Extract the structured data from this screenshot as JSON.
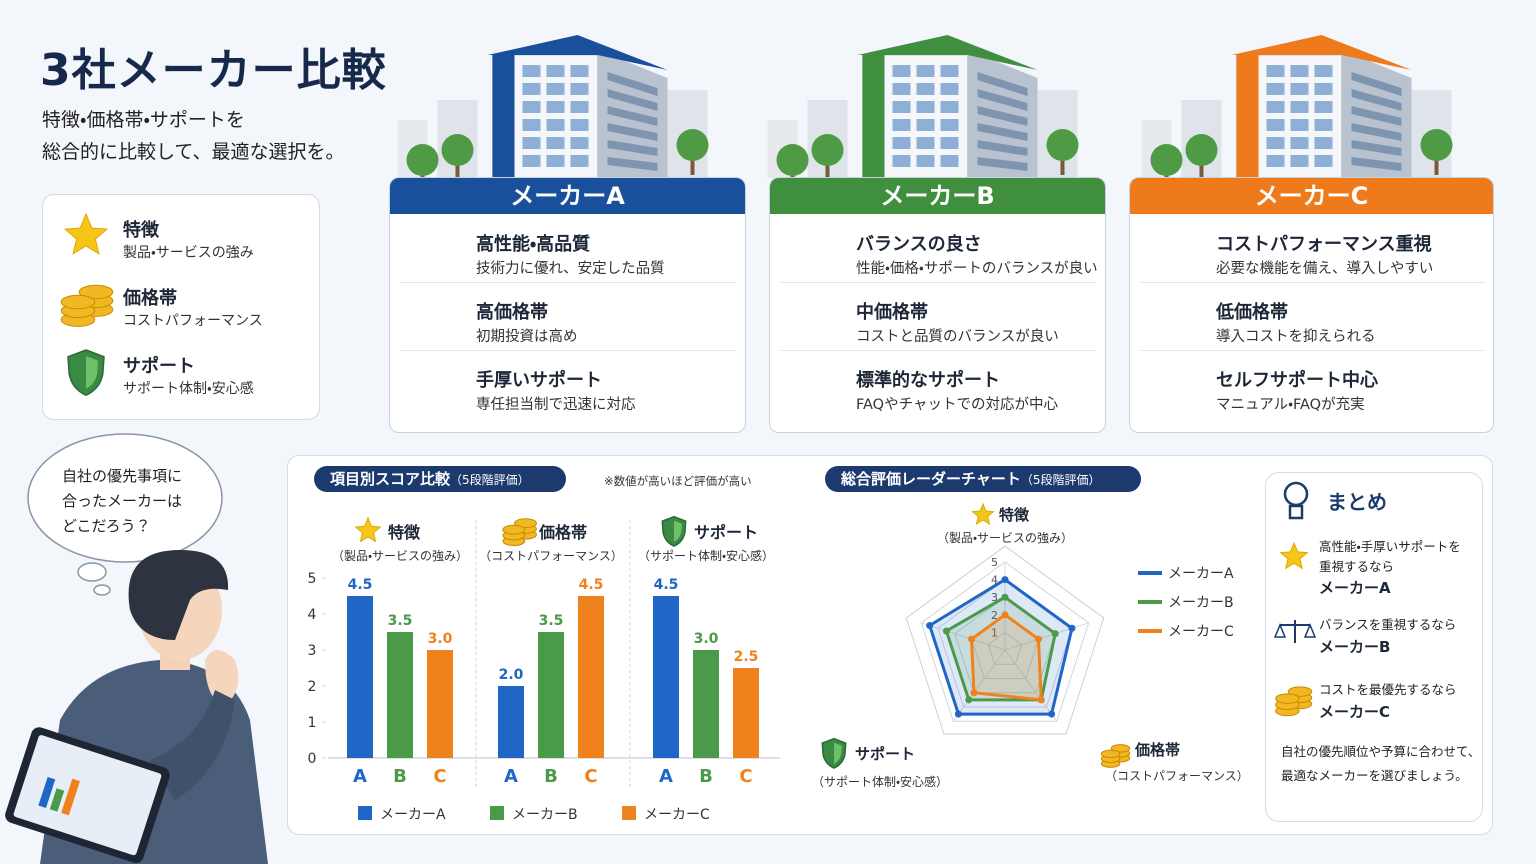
{
  "header": {
    "title": "3社メーカー比較",
    "subtitle": [
      "特徴・価格帯・サポートを",
      "総合的に比較して、最適な選択を。"
    ]
  },
  "legend": [
    {
      "title": "特徴",
      "desc": "製品・サービスの強み"
    },
    {
      "title": "価格帯",
      "desc": "コストパフォーマンス"
    },
    {
      "title": "サポート",
      "desc": "サポート体制・安心感"
    }
  ],
  "makers": [
    {
      "name": "メーカーA",
      "color": "#1a4f9c",
      "rows": [
        {
          "title": "高性能・高品質",
          "desc": "技術力に優れ、安定した品質"
        },
        {
          "title": "高価格帯",
          "desc": "初期投資は高め"
        },
        {
          "title": "手厚いサポート",
          "desc": "専任担当制で迅速に対応"
        }
      ]
    },
    {
      "name": "メーカーB",
      "color": "#3f8f3f",
      "rows": [
        {
          "title": "バランスの良さ",
          "desc": "性能・価格・サポートのバランスが良い"
        },
        {
          "title": "中価格帯",
          "desc": "コストと品質のバランスが良い"
        },
        {
          "title": "標準的なサポート",
          "desc": "FAQやチャットでの対応が中心"
        }
      ]
    },
    {
      "name": "メーカーC",
      "color": "#ee7a1c",
      "rows": [
        {
          "title": "コストパフォーマンス重視",
          "desc": "必要な機能を備え、導入しやすい"
        },
        {
          "title": "低価格帯",
          "desc": "導入コストを抑えられる"
        },
        {
          "title": "セルフサポート中心",
          "desc": "マニュアル・FAQが充実"
        }
      ]
    }
  ],
  "thought": [
    "自社の優先事項に",
    "合ったメーカーは",
    "どこだろう？"
  ],
  "chart_data": [
    {
      "type": "bar",
      "title": "項目別スコア比較",
      "title_note": "（5段階評価）",
      "note": "※数値が高いほど評価が高い",
      "ylim": [
        0,
        5
      ],
      "yticks": [
        0,
        1,
        2,
        3,
        4,
        5
      ],
      "categories": [
        "A",
        "B",
        "C"
      ],
      "colors": [
        "#1f66c6",
        "#4a9a4a",
        "#f0821e"
      ],
      "legend": [
        "メーカーA",
        "メーカーB",
        "メーカーC"
      ],
      "groups": [
        {
          "name": "特徴",
          "sub": "（製品・サービスの強み）",
          "values": [
            4.5,
            3.5,
            3.0
          ],
          "value_labels": [
            "4.5",
            "3.5",
            "3.0"
          ]
        },
        {
          "name": "価格帯",
          "sub": "（コストパフォーマンス）",
          "values": [
            2.0,
            3.5,
            4.5
          ],
          "value_labels": [
            "2.0",
            "3.5",
            "4.5"
          ]
        },
        {
          "name": "サポート",
          "sub": "（サポート体制・安心感）",
          "values": [
            4.5,
            3.0,
            2.5
          ],
          "value_labels": [
            "4.5",
            "3.0",
            "2.5"
          ]
        }
      ]
    },
    {
      "type": "radar",
      "title": "総合評価レーダーチャート",
      "title_note": "（5段階評価）",
      "rlim": [
        0,
        5
      ],
      "rticks": [
        1,
        2,
        3,
        4,
        5
      ],
      "axes": [
        "特徴",
        null,
        "価格帯",
        "サポート",
        null
      ],
      "axis_subs": [
        "（製品・サービスの強み）",
        null,
        "（コストパフォーマンス）",
        "（サポート体制・安心感）",
        null
      ],
      "series": [
        {
          "name": "メーカーA",
          "color": "#1f66c6",
          "values": [
            4,
            4,
            4.5,
            4.5,
            4.5
          ]
        },
        {
          "name": "メーカーB",
          "color": "#4a9a4a",
          "values": [
            3,
            3,
            3.5,
            3.5,
            3.5
          ]
        },
        {
          "name": "メーカーC",
          "color": "#f0821e",
          "values": [
            2,
            2,
            3.5,
            3,
            2
          ]
        }
      ]
    }
  ],
  "summary": {
    "title": "まとめ",
    "items": [
      {
        "text": "高性能・手厚いサポートを重視するなら",
        "maker": "メーカーA"
      },
      {
        "text": "バランスを重視するなら",
        "maker": "メーカーB"
      },
      {
        "text": "コストを最優先するなら",
        "maker": "メーカーC"
      }
    ],
    "footer": "自社の優先順位や予算に合わせて、最適なメーカーを選びましょう。"
  }
}
